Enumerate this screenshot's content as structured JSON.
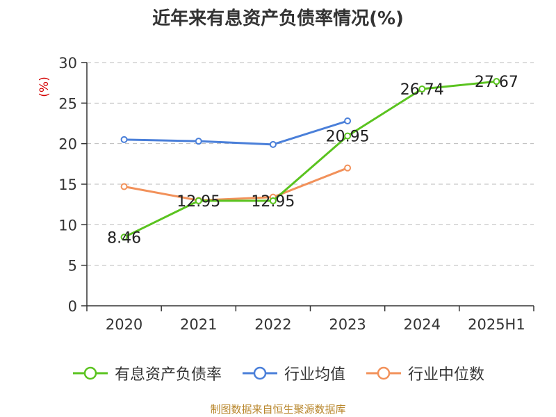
{
  "title": "近年来有息资产负债率情况(%)",
  "source": "制图数据来自恒生聚源数据库",
  "colors": {
    "series_1": "#5ac31f",
    "series_2": "#4a7fd9",
    "series_3": "#f2915a",
    "unit_label": "#d40000",
    "grid": "#bbbbbb",
    "axis": "#333333"
  },
  "chart_data": {
    "type": "line",
    "title": "近年来有息资产负债率情况(%)",
    "ylabel": "(%)",
    "ylim": [
      0,
      30
    ],
    "yticks": [
      0,
      5,
      10,
      15,
      20,
      25,
      30
    ],
    "grid": true,
    "legend_position": "bottom",
    "categories": [
      "2020",
      "2021",
      "2022",
      "2023",
      "2024",
      "2025H1"
    ],
    "series": [
      {
        "name": "有息资产负债率",
        "values": [
          8.46,
          12.95,
          12.95,
          20.95,
          26.74,
          27.67
        ],
        "labels": [
          "8.46",
          "12.95",
          "12.95",
          "20.95",
          "26.74",
          "27.67"
        ],
        "color": "#5ac31f"
      },
      {
        "name": "行业均值",
        "values": [
          20.5,
          20.3,
          19.9,
          22.8,
          null,
          null
        ],
        "color": "#4a7fd9"
      },
      {
        "name": "行业中位数",
        "values": [
          14.7,
          13.0,
          13.4,
          17.0,
          null,
          null
        ],
        "color": "#f2915a"
      }
    ]
  }
}
